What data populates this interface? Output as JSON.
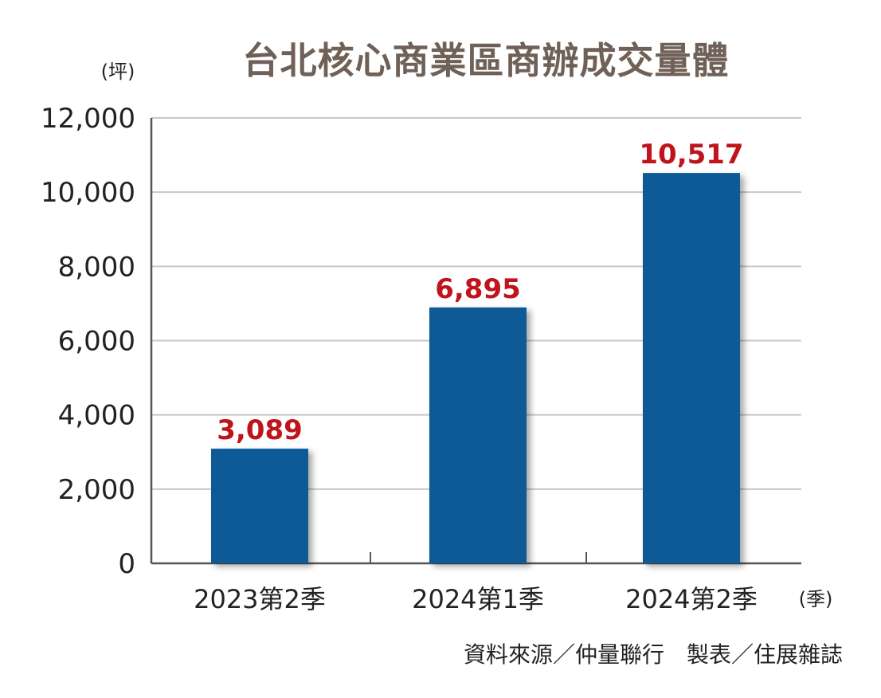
{
  "chart_data": {
    "type": "bar",
    "title": "台北核心商業區商辦成交量體",
    "ylabel": "(坪)",
    "xlabel": "(季)",
    "categories": [
      "2023第2季",
      "2024第1季",
      "2024第2季"
    ],
    "values": [
      3089,
      6895,
      10517
    ],
    "data_labels": [
      "3,089",
      "6,895",
      "10,517"
    ],
    "ylim": [
      0,
      12000
    ],
    "yticks": [
      0,
      2000,
      4000,
      6000,
      8000,
      10000,
      12000
    ],
    "ytick_labels": [
      "0",
      "2,000",
      "4,000",
      "6,000",
      "8,000",
      "10,000",
      "12,000"
    ],
    "grid": true,
    "colors": {
      "bar": "#0a5a96",
      "label": "#c0141c",
      "grid": "#c8c8c8",
      "axis": "#555555",
      "title": "#6f6157"
    }
  },
  "footer": {
    "source": "資料來源／仲量聯行　製表／住展雜誌"
  }
}
